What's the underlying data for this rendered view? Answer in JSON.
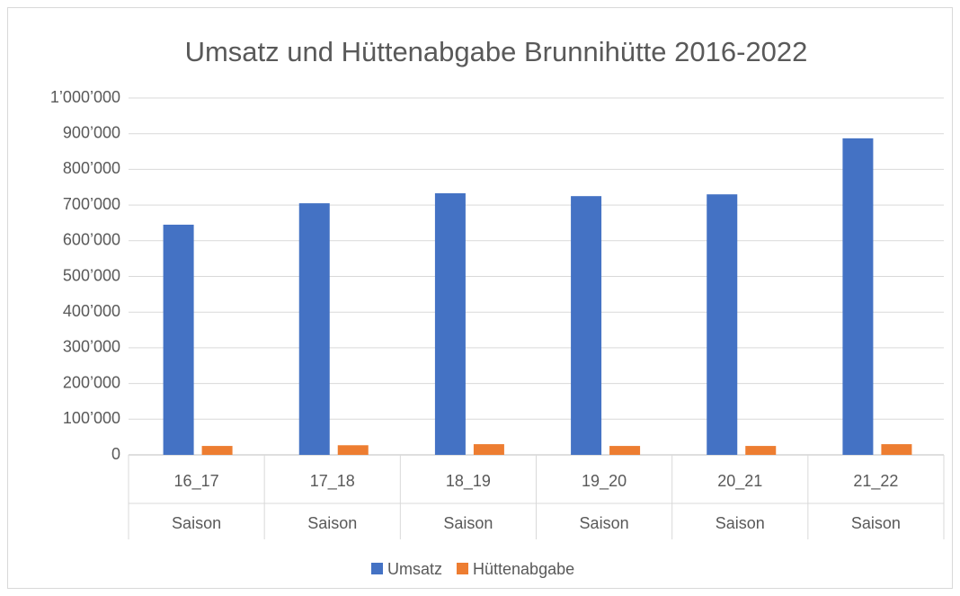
{
  "chart_data": {
    "type": "bar",
    "title": "Umsatz und Hüttenabgabe Brunnihütte 2016-2022",
    "categories": [
      "16_17",
      "17_18",
      "18_19",
      "19_20",
      "20_21",
      "21_22"
    ],
    "category_groups": [
      "Saison",
      "Saison",
      "Saison",
      "Saison",
      "Saison",
      "Saison"
    ],
    "series": [
      {
        "name": "Umsatz",
        "color": "#4472c4",
        "values": [
          645000,
          705000,
          733000,
          725000,
          730000,
          887000
        ]
      },
      {
        "name": "Hüttenabgabe",
        "color": "#ed7d31",
        "values": [
          25000,
          27000,
          30000,
          25000,
          25000,
          30000
        ]
      }
    ],
    "ylim": [
      0,
      1000000
    ],
    "yticks": [
      0,
      {
        "value": 100000,
        "label": "100’000"
      },
      {
        "value": 200000,
        "label": "200’000"
      },
      {
        "value": 300000,
        "label": "300’000"
      },
      {
        "value": 400000,
        "label": "400’000"
      },
      {
        "value": 500000,
        "label": "500’000"
      },
      {
        "value": 600000,
        "label": "600’000"
      },
      {
        "value": 700000,
        "label": "700’000"
      },
      {
        "value": 800000,
        "label": "800’000"
      },
      {
        "value": 900000,
        "label": "900’000"
      },
      {
        "value": 1000000,
        "label": "1’000’000"
      }
    ],
    "grid": true,
    "legend": "bottom"
  }
}
